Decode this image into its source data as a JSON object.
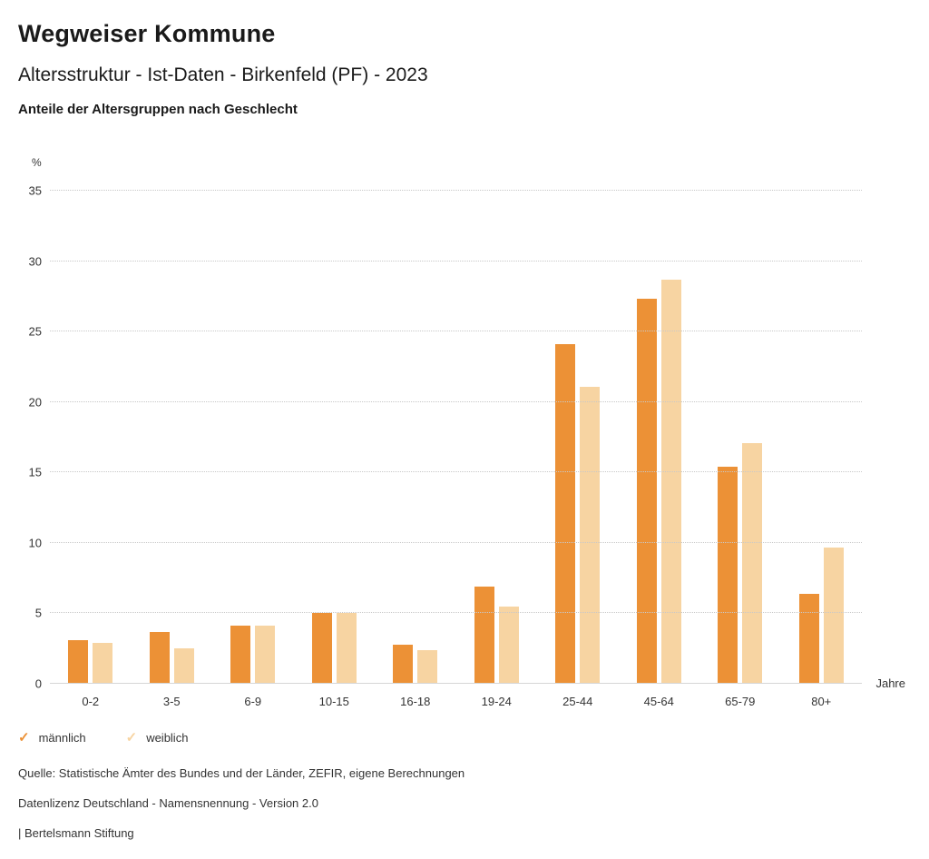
{
  "header": {
    "title": "Wegweiser Kommune",
    "subtitle": "Altersstruktur - Ist-Daten - Birkenfeld (PF) - 2023",
    "subsubtitle": "Anteile der Altersgruppen nach Geschlecht"
  },
  "chart_data": {
    "type": "bar",
    "title": "Anteile der Altersgruppen nach Geschlecht",
    "categories": [
      "0-2",
      "3-5",
      "6-9",
      "10-15",
      "16-18",
      "19-24",
      "25-44",
      "45-64",
      "65-79",
      "80+"
    ],
    "series": [
      {
        "name": "männlich",
        "color": "#EC9136",
        "values": [
          3.1,
          3.7,
          4.1,
          5.0,
          2.8,
          6.9,
          24.1,
          27.3,
          15.4,
          6.4
        ]
      },
      {
        "name": "weiblich",
        "color": "#F7D4A2",
        "values": [
          2.9,
          2.5,
          4.1,
          5.0,
          2.4,
          5.5,
          21.1,
          28.7,
          17.1,
          9.7
        ]
      }
    ],
    "ylabel": "%",
    "xlabel": "Jahre",
    "ylim": [
      0,
      35
    ],
    "yticks": [
      0,
      5,
      10,
      15,
      20,
      25,
      30,
      35
    ],
    "grid": true,
    "legend_position": "bottom"
  },
  "legend": {
    "items": [
      {
        "label": "männlich",
        "color": "#EC9136",
        "icon": "✓"
      },
      {
        "label": "weiblich",
        "color": "#F7D4A2",
        "icon": "✓"
      }
    ]
  },
  "footer": {
    "source": "Quelle: Statistische Ämter des Bundes und der Länder, ZEFIR, eigene Berechnungen",
    "license": "Datenlizenz Deutschland - Namensnennung - Version 2.0",
    "attribution": "| Bertelsmann Stiftung"
  }
}
